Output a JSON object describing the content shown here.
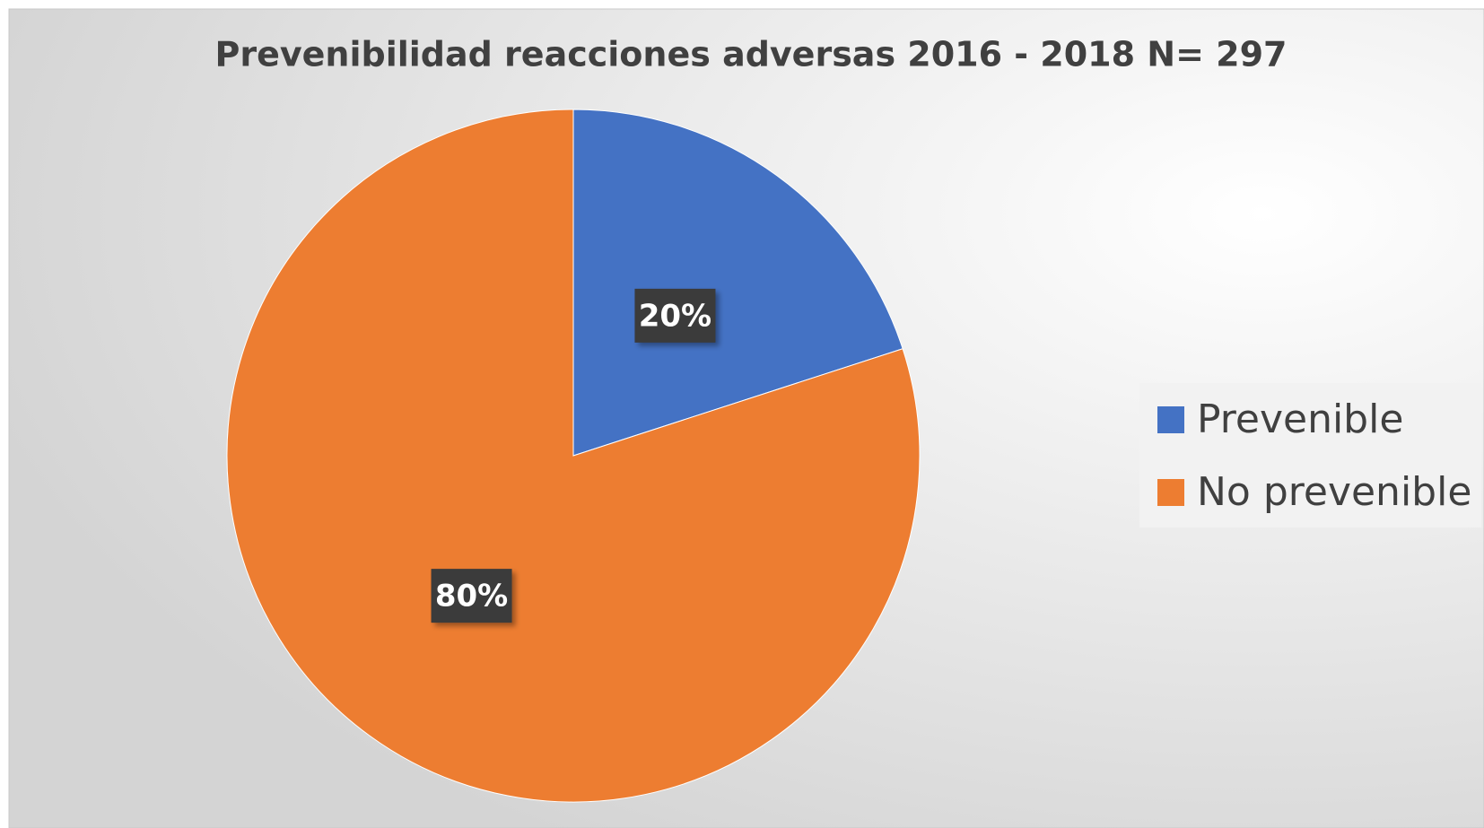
{
  "chart_data": {
    "type": "pie",
    "title": "Prevenibilidad reacciones adversas 2016 - 2018 N= 297",
    "categories": [
      "Prevenible",
      "No prevenible"
    ],
    "values": [
      20,
      80
    ],
    "value_labels": [
      "20%",
      "80%"
    ],
    "colors": [
      "#4472c4",
      "#ed7d31"
    ],
    "legend": "right"
  }
}
